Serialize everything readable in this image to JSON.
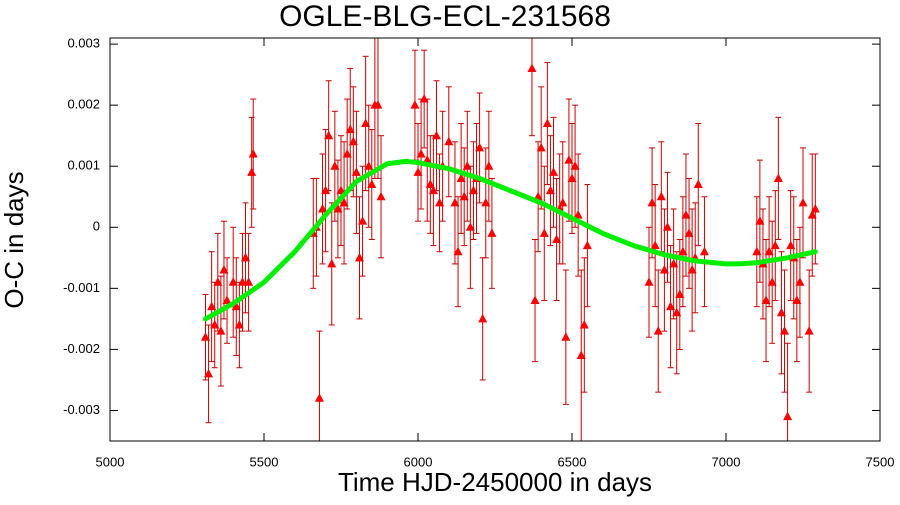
{
  "chart_data": {
    "type": "scatter",
    "title": "OGLE-BLG-ECL-231568",
    "x_label": "Time HJD-2450000 in days",
    "y_label": "O-C in days",
    "xlim": [
      5000,
      7500
    ],
    "xticks": [
      5000,
      5500,
      6000,
      6500,
      7000,
      7500
    ],
    "ylim": [
      -0.0035,
      0.0031
    ],
    "yticks": [
      0.003,
      0.002,
      0.001,
      0,
      -0.001,
      -0.002,
      -0.003
    ],
    "grid": false,
    "series": [
      {
        "kind": "points",
        "color": "#ff0000",
        "error_color": "#cc0000",
        "x": [
          5310,
          5320,
          5330,
          5340,
          5350,
          5360,
          5370,
          5380,
          5400,
          5410,
          5420,
          5430,
          5440,
          5450,
          5460,
          5465,
          5660,
          5670,
          5680,
          5690,
          5700,
          5710,
          5720,
          5730,
          5740,
          5750,
          5760,
          5770,
          5780,
          5790,
          5800,
          5810,
          5820,
          5830,
          5840,
          5850,
          5860,
          5870,
          5880,
          5990,
          6000,
          6010,
          6020,
          6030,
          6040,
          6050,
          6060,
          6070,
          6080,
          6100,
          6120,
          6130,
          6140,
          6150,
          6160,
          6170,
          6180,
          6190,
          6200,
          6210,
          6220,
          6230,
          6240,
          6370,
          6380,
          6390,
          6400,
          6410,
          6420,
          6430,
          6440,
          6450,
          6460,
          6470,
          6480,
          6490,
          6500,
          6510,
          6520,
          6530,
          6540,
          6550,
          6750,
          6760,
          6770,
          6780,
          6790,
          6800,
          6810,
          6820,
          6830,
          6840,
          6850,
          6860,
          6870,
          6880,
          6890,
          6900,
          6910,
          6930,
          7100,
          7110,
          7120,
          7130,
          7140,
          7150,
          7160,
          7170,
          7180,
          7190,
          7200,
          7210,
          7220,
          7230,
          7240,
          7250,
          7270,
          7280,
          7290
        ],
        "values": [
          -0.0018,
          -0.0024,
          -0.0013,
          -0.0016,
          -0.0009,
          -0.0017,
          -0.0007,
          -0.0012,
          -0.0009,
          -0.0013,
          -0.0016,
          -0.0009,
          -0.0005,
          -0.0009,
          0.0009,
          0.0012,
          -0.0001,
          0.0,
          -0.0028,
          0.0003,
          0.0006,
          0.0015,
          -0.0006,
          0.001,
          0.0003,
          0.0006,
          0.0004,
          0.0012,
          0.0016,
          0.0014,
          0.0009,
          -0.0005,
          0.0001,
          0.0017,
          0.001,
          0.0007,
          0.002,
          0.002,
          0.0005,
          0.002,
          0.0009,
          0.0012,
          0.0021,
          0.0011,
          0.0007,
          0.0006,
          0.0015,
          0.0004,
          0.001,
          0.0014,
          0.0004,
          -0.0004,
          0.0008,
          0.0005,
          0.001,
          0.0,
          0.0006,
          0.0008,
          0.0013,
          -0.0015,
          0.0004,
          0.001,
          -0.0001,
          0.0026,
          -0.0012,
          0.0005,
          0.0013,
          -0.0001,
          0.0017,
          0.0006,
          0.0009,
          -0.0002,
          0.0003,
          0.0004,
          -0.0018,
          0.0011,
          0.0008,
          0.001,
          0.0002,
          -0.0021,
          -0.0016,
          -0.0003,
          -0.0009,
          0.0004,
          -0.0003,
          -0.0017,
          0.0005,
          -0.0007,
          0.0,
          -0.0013,
          -0.0006,
          -0.0014,
          -0.0011,
          -0.0004,
          0.0002,
          -0.0001,
          -0.0007,
          -0.0005,
          0.0007,
          -0.0004,
          -0.0004,
          0.0001,
          -0.0006,
          -0.0012,
          -0.0004,
          -0.0009,
          -0.0003,
          0.0008,
          -0.0014,
          -0.0017,
          -0.0031,
          -0.0003,
          -0.0005,
          -0.0012,
          -0.0009,
          0.0004,
          -0.0017,
          0.0002,
          0.0003
        ],
        "errors": [
          0.0007,
          0.0008,
          0.0009,
          0.0007,
          0.0008,
          0.0009,
          0.0008,
          0.0007,
          0.0009,
          0.0008,
          0.0007,
          0.0008,
          0.0009,
          0.0008,
          0.0009,
          0.0009,
          0.0009,
          0.0008,
          0.0011,
          0.0009,
          0.001,
          0.0009,
          0.001,
          0.0009,
          0.0008,
          0.0009,
          0.001,
          0.0009,
          0.001,
          0.0009,
          0.001,
          0.001,
          0.0009,
          0.0011,
          0.001,
          0.0009,
          0.0012,
          0.0012,
          0.001,
          0.0009,
          0.0008,
          0.0009,
          0.0008,
          0.001,
          0.0008,
          0.0009,
          0.0009,
          0.0008,
          0.0009,
          0.0009,
          0.001,
          0.0009,
          0.0009,
          0.0008,
          0.0009,
          0.001,
          0.0008,
          0.0009,
          0.0009,
          0.001,
          0.0009,
          0.0009,
          0.0009,
          0.0011,
          0.001,
          0.0009,
          0.001,
          0.0011,
          0.001,
          0.0009,
          0.0009,
          0.001,
          0.0009,
          0.001,
          0.0011,
          0.001,
          0.0009,
          0.001,
          0.001,
          0.0014,
          0.0011,
          0.001,
          0.0009,
          0.0009,
          0.001,
          0.001,
          0.0009,
          0.001,
          0.0009,
          0.001,
          0.0009,
          0.001,
          0.0009,
          0.0009,
          0.001,
          0.0009,
          0.001,
          0.0009,
          0.001,
          0.0009,
          0.0009,
          0.001,
          0.0009,
          0.001,
          0.0009,
          0.001,
          0.0009,
          0.001,
          0.001,
          0.001,
          0.0012,
          0.0009,
          0.001,
          0.001,
          0.0009,
          0.0009,
          0.001,
          0.001,
          0.0009
        ]
      },
      {
        "kind": "line",
        "color": "#00ee00",
        "x": [
          5310,
          5400,
          5500,
          5600,
          5700,
          5800,
          5900,
          5960,
          6000,
          6100,
          6200,
          6300,
          6400,
          6500,
          6600,
          6700,
          6800,
          6900,
          7000,
          7040,
          7100,
          7200,
          7290
        ],
        "values": [
          -0.0015,
          -0.00125,
          -0.0009,
          -0.0004,
          0.0002,
          0.00075,
          0.00104,
          0.00108,
          0.00106,
          0.00096,
          0.0008,
          0.0006,
          0.0004,
          0.00015,
          -0.0001,
          -0.0003,
          -0.00045,
          -0.00055,
          -0.0006,
          -0.0006,
          -0.00058,
          -0.0005,
          -0.0004
        ]
      }
    ]
  }
}
